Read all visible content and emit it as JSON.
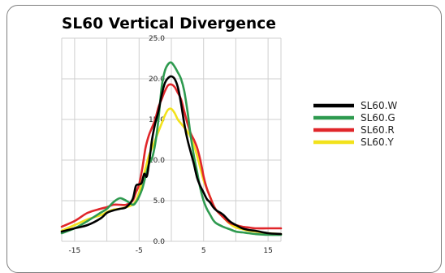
{
  "chart_data": {
    "type": "line",
    "title": "SL60 Vertical Divergence",
    "xlabel": "",
    "ylabel": "",
    "xlim": [
      -17,
      17
    ],
    "ylim": [
      0,
      25
    ],
    "xticks": [
      -15,
      -5,
      5,
      15
    ],
    "yticks": [
      0,
      5,
      10,
      15,
      20,
      25
    ],
    "ytick_labels": [
      "0.0",
      "5.0",
      "10.0",
      "15.0",
      "20.0",
      "25.0"
    ],
    "grid": true,
    "legend_position": "right",
    "series": [
      {
        "name": "SL60.W",
        "color": "#000000",
        "points": [
          [
            -17,
            1.2
          ],
          [
            -15,
            1.6
          ],
          [
            -13,
            2.0
          ],
          [
            -11,
            2.8
          ],
          [
            -10,
            3.5
          ],
          [
            -9,
            3.8
          ],
          [
            -8,
            4.0
          ],
          [
            -7,
            4.2
          ],
          [
            -6,
            5.2
          ],
          [
            -5.5,
            6.8
          ],
          [
            -5,
            7.0
          ],
          [
            -4.6,
            7.2
          ],
          [
            -4.2,
            8.3
          ],
          [
            -3.8,
            8.0
          ],
          [
            -3.4,
            10.0
          ],
          [
            -3,
            12.5
          ],
          [
            -2.5,
            14.5
          ],
          [
            -2,
            16.0
          ],
          [
            -1.5,
            18.0
          ],
          [
            -1,
            19.5
          ],
          [
            -0.5,
            20.1
          ],
          [
            0,
            20.3
          ],
          [
            0.5,
            20.0
          ],
          [
            1,
            19.0
          ],
          [
            1.5,
            17.0
          ],
          [
            2,
            14.5
          ],
          [
            2.5,
            12.5
          ],
          [
            3,
            11.0
          ],
          [
            3.5,
            9.5
          ],
          [
            4,
            7.8
          ],
          [
            4.5,
            6.8
          ],
          [
            5,
            6.0
          ],
          [
            5.5,
            5.2
          ],
          [
            6,
            4.8
          ],
          [
            6.5,
            4.2
          ],
          [
            7,
            3.8
          ],
          [
            8,
            3.3
          ],
          [
            9,
            2.5
          ],
          [
            10,
            2.0
          ],
          [
            11,
            1.6
          ],
          [
            12,
            1.4
          ],
          [
            13,
            1.3
          ],
          [
            15,
            1.0
          ],
          [
            17,
            0.9
          ]
        ]
      },
      {
        "name": "SL60.G",
        "color": "#2e9a4f",
        "points": [
          [
            -17,
            1.0
          ],
          [
            -15,
            1.6
          ],
          [
            -13,
            2.5
          ],
          [
            -11,
            3.5
          ],
          [
            -10,
            4.0
          ],
          [
            -9,
            4.8
          ],
          [
            -8,
            5.3
          ],
          [
            -7,
            5.0
          ],
          [
            -6,
            4.5
          ],
          [
            -5.5,
            4.8
          ],
          [
            -5,
            5.5
          ],
          [
            -4.5,
            6.5
          ],
          [
            -4,
            8.0
          ],
          [
            -3.5,
            9.5
          ],
          [
            -3,
            10.2
          ],
          [
            -2.5,
            12.0
          ],
          [
            -2,
            15.0
          ],
          [
            -1.5,
            19.0
          ],
          [
            -1,
            21.0
          ],
          [
            -0.5,
            21.8
          ],
          [
            0,
            22.0
          ],
          [
            0.5,
            21.5
          ],
          [
            1,
            20.8
          ],
          [
            1.5,
            20.0
          ],
          [
            2,
            18.5
          ],
          [
            2.5,
            16.0
          ],
          [
            3,
            13.0
          ],
          [
            3.5,
            10.5
          ],
          [
            4,
            8.5
          ],
          [
            4.5,
            6.5
          ],
          [
            5,
            5.0
          ],
          [
            5.5,
            4.0
          ],
          [
            6,
            3.3
          ],
          [
            6.5,
            2.6
          ],
          [
            7,
            2.2
          ],
          [
            8,
            1.8
          ],
          [
            9,
            1.5
          ],
          [
            10,
            1.2
          ],
          [
            11,
            1.1
          ],
          [
            12,
            1.0
          ],
          [
            13,
            0.9
          ],
          [
            15,
            0.8
          ],
          [
            17,
            0.8
          ]
        ]
      },
      {
        "name": "SL60.R",
        "color": "#e0262a",
        "points": [
          [
            -17,
            1.8
          ],
          [
            -15,
            2.5
          ],
          [
            -13,
            3.5
          ],
          [
            -11,
            4.0
          ],
          [
            -10,
            4.2
          ],
          [
            -9,
            4.5
          ],
          [
            -8,
            4.5
          ],
          [
            -7,
            4.5
          ],
          [
            -6,
            5.0
          ],
          [
            -5.5,
            6.0
          ],
          [
            -5,
            7.0
          ],
          [
            -4.5,
            9.0
          ],
          [
            -4,
            11.5
          ],
          [
            -3.5,
            13.0
          ],
          [
            -3,
            14.0
          ],
          [
            -2.5,
            15.0
          ],
          [
            -2,
            16.5
          ],
          [
            -1.5,
            17.5
          ],
          [
            -1,
            18.5
          ],
          [
            -0.5,
            19.2
          ],
          [
            0,
            19.3
          ],
          [
            0.5,
            19.0
          ],
          [
            1,
            18.3
          ],
          [
            1.5,
            17.5
          ],
          [
            2,
            16.0
          ],
          [
            2.5,
            14.5
          ],
          [
            3,
            13.3
          ],
          [
            3.5,
            12.5
          ],
          [
            4,
            11.5
          ],
          [
            4.5,
            10.0
          ],
          [
            5,
            8.0
          ],
          [
            5.5,
            6.5
          ],
          [
            6,
            5.5
          ],
          [
            6.5,
            4.5
          ],
          [
            7,
            3.8
          ],
          [
            8,
            3.0
          ],
          [
            9,
            2.3
          ],
          [
            10,
            2.0
          ],
          [
            11,
            1.8
          ],
          [
            12,
            1.7
          ],
          [
            13,
            1.6
          ],
          [
            15,
            1.6
          ],
          [
            17,
            1.6
          ]
        ]
      },
      {
        "name": "SL60.Y",
        "color": "#f2e21c",
        "points": [
          [
            -17,
            1.3
          ],
          [
            -15,
            2.0
          ],
          [
            -13,
            2.7
          ],
          [
            -11,
            3.2
          ],
          [
            -10,
            3.6
          ],
          [
            -9,
            3.9
          ],
          [
            -8,
            4.0
          ],
          [
            -7,
            4.2
          ],
          [
            -6,
            4.5
          ],
          [
            -5.5,
            5.0
          ],
          [
            -5,
            6.0
          ],
          [
            -4.5,
            7.5
          ],
          [
            -4,
            9.0
          ],
          [
            -3.5,
            10.5
          ],
          [
            -3,
            11.5
          ],
          [
            -2.5,
            12.5
          ],
          [
            -2,
            13.5
          ],
          [
            -1.5,
            14.5
          ],
          [
            -1,
            15.5
          ],
          [
            -0.5,
            16.2
          ],
          [
            0,
            16.3
          ],
          [
            0.5,
            15.8
          ],
          [
            1,
            15.0
          ],
          [
            1.5,
            14.5
          ],
          [
            2,
            14.0
          ],
          [
            2.5,
            13.5
          ],
          [
            3,
            12.8
          ],
          [
            3.5,
            11.8
          ],
          [
            4,
            10.5
          ],
          [
            4.5,
            9.0
          ],
          [
            5,
            7.5
          ],
          [
            5.5,
            6.5
          ],
          [
            6,
            5.5
          ],
          [
            6.5,
            4.5
          ],
          [
            7,
            3.8
          ],
          [
            8,
            3.0
          ],
          [
            9,
            2.2
          ],
          [
            10,
            1.7
          ],
          [
            11,
            1.5
          ],
          [
            12,
            1.3
          ],
          [
            13,
            1.2
          ],
          [
            15,
            1.0
          ],
          [
            17,
            0.9
          ]
        ]
      }
    ]
  }
}
